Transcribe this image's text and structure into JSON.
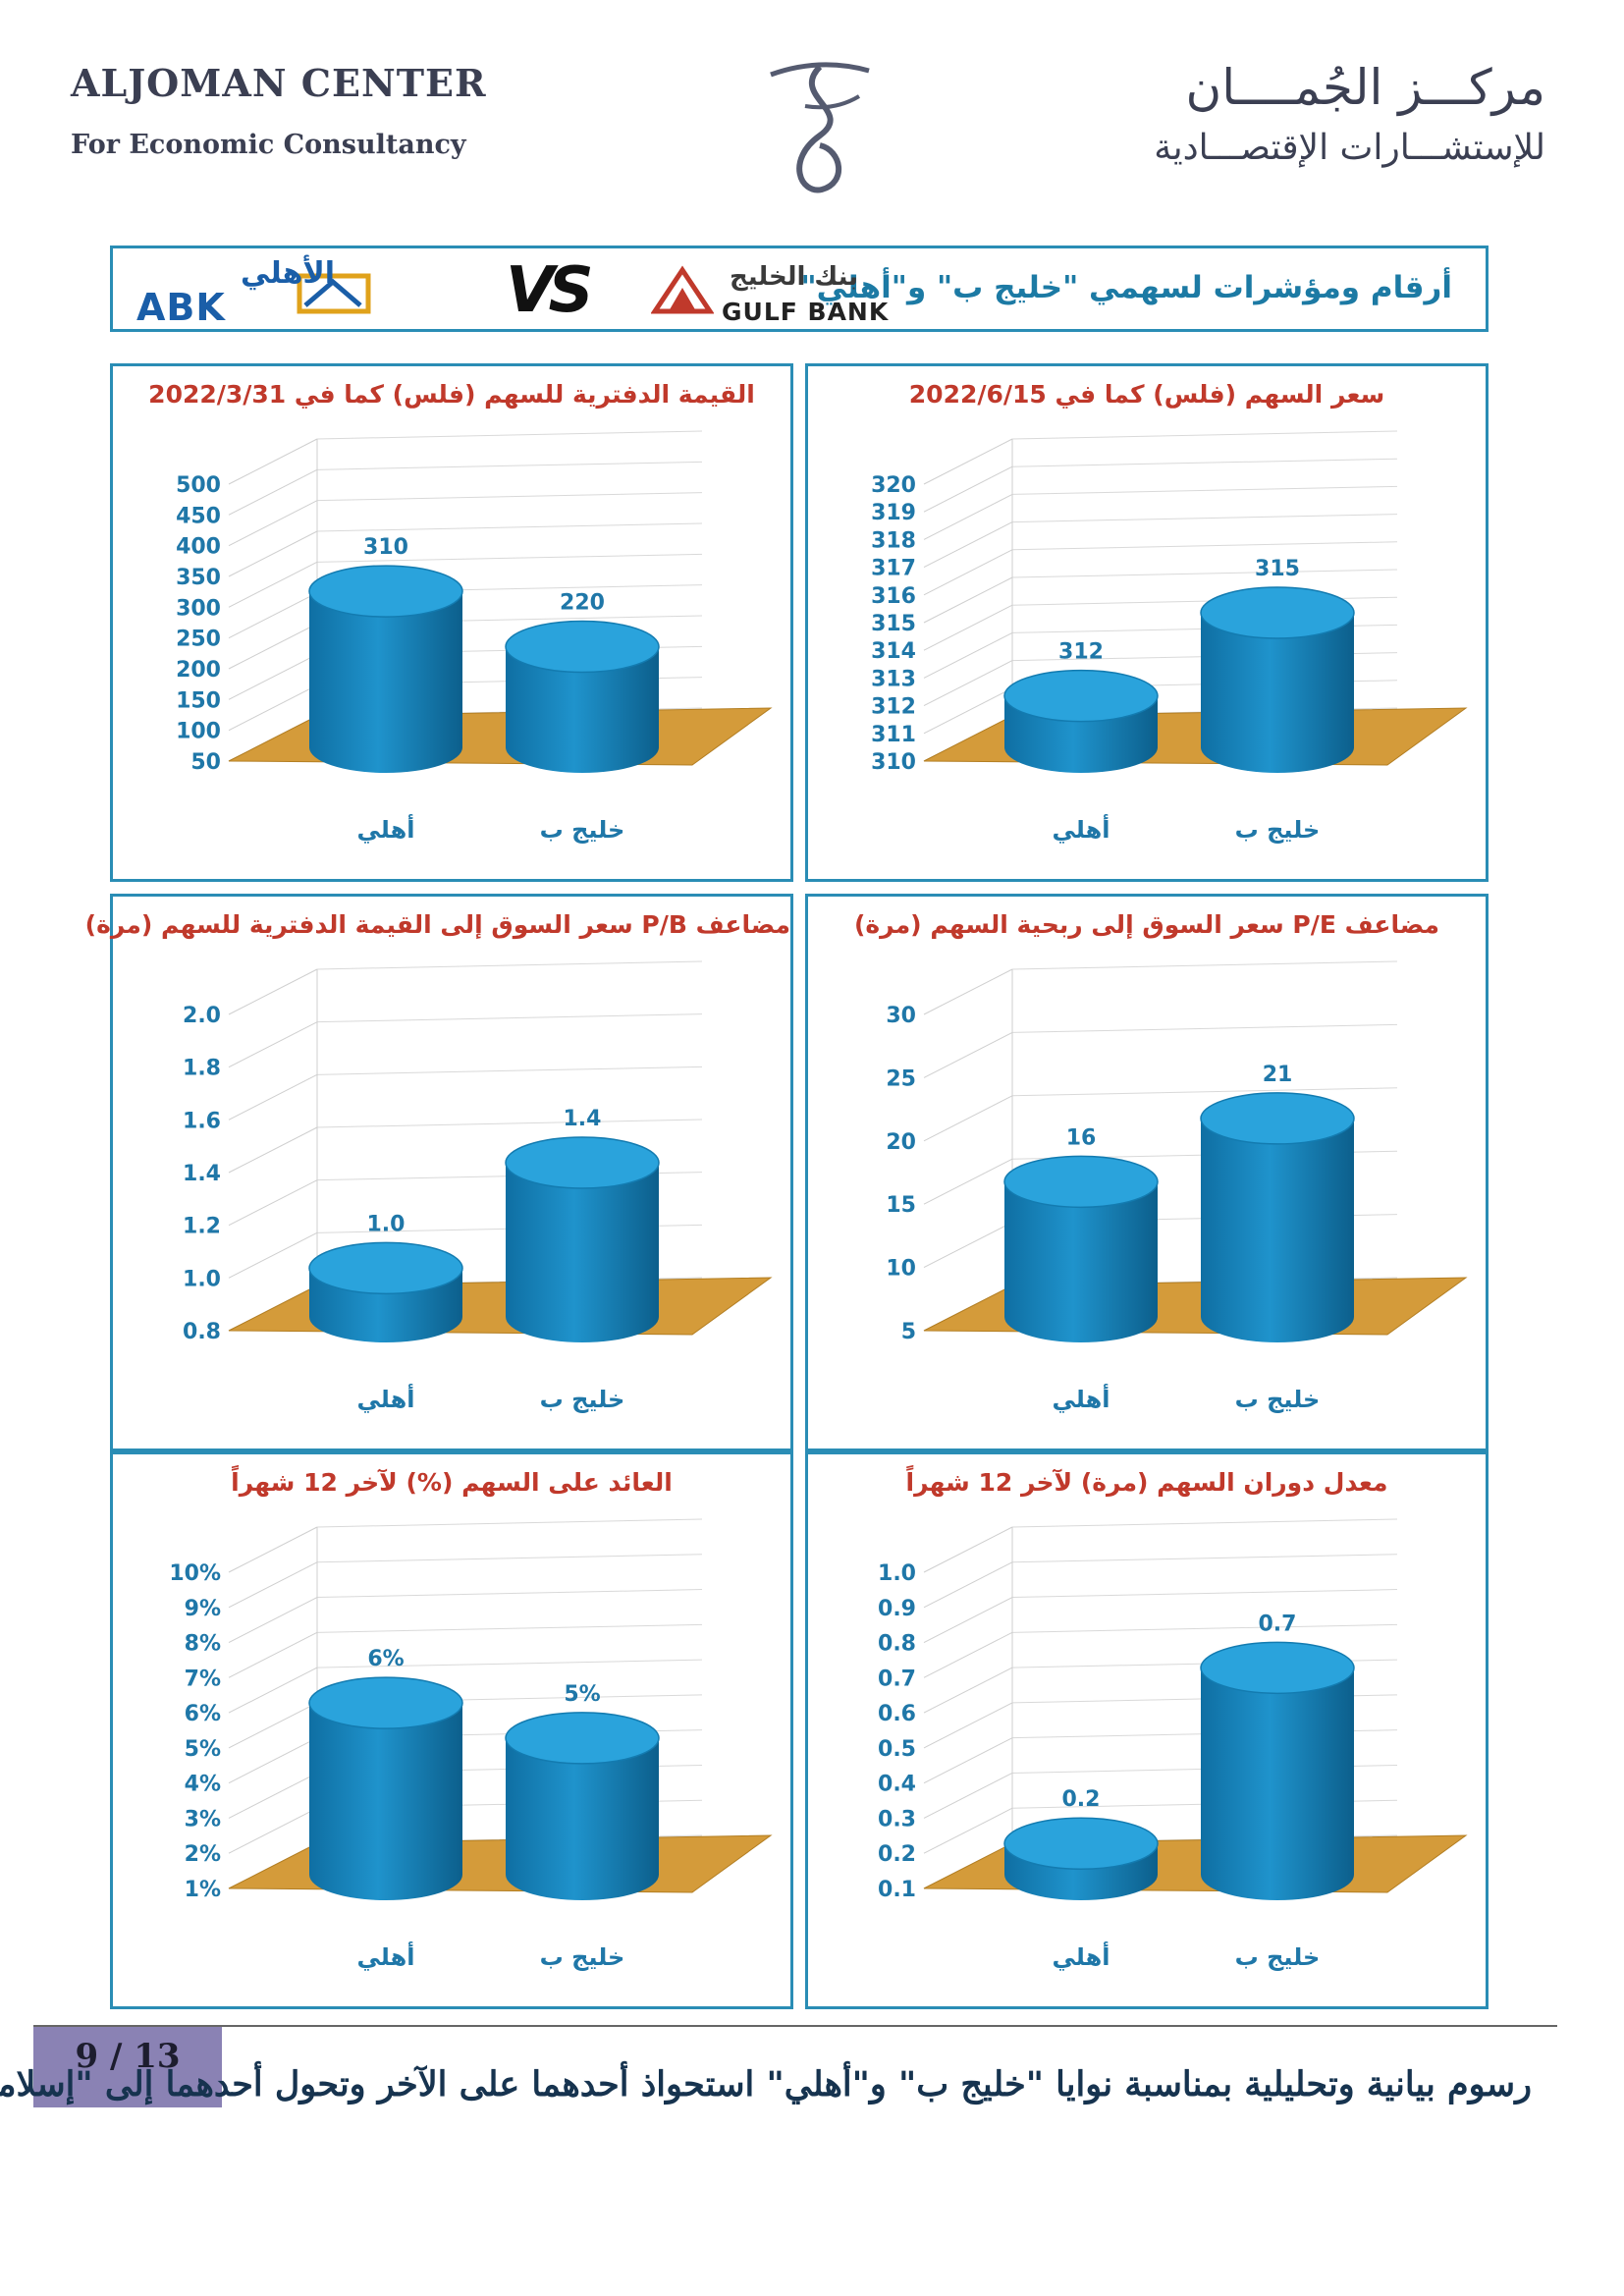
{
  "header": {
    "en_title": "ALJOMAN CENTER",
    "en_subtitle": "For Economic Consultancy",
    "ar_title": "مركـــز الجُمــــان",
    "ar_subtitle": "للإستشـــارات الإقتصـــادية"
  },
  "banner": {
    "title": "أرقام ومؤشرات لسهمي \"خليج ب\" و\"أهلي\"",
    "gulf_bank_ar": "بنك الخليج",
    "gulf_bank_en": "GULF BANK",
    "vs_label": "VS",
    "abk_ar": "الأهلي",
    "abk_en": "ABK"
  },
  "chart_data": [
    {
      "type": "bar",
      "title": "سعر السهم (فلس) كما في 2022/6/15",
      "categories": [
        "أهلي",
        "خليج ب"
      ],
      "values": [
        312,
        315
      ],
      "value_labels": [
        "312",
        "315"
      ],
      "ylim": [
        310,
        320
      ],
      "yticks": [
        "310",
        "311",
        "312",
        "313",
        "314",
        "315",
        "316",
        "317",
        "318",
        "319",
        "320"
      ]
    },
    {
      "type": "bar",
      "title": "القيمة الدفترية للسهم (فلس) كما في 2022/3/31",
      "categories": [
        "أهلي",
        "خليج ب"
      ],
      "values": [
        310,
        220
      ],
      "value_labels": [
        "310",
        "220"
      ],
      "ylim": [
        50,
        500
      ],
      "yticks": [
        "50",
        "100",
        "150",
        "200",
        "250",
        "300",
        "350",
        "400",
        "450",
        "500"
      ]
    },
    {
      "type": "bar",
      "title": "مضاعف P/E سعر السوق إلى ربحية السهم (مرة)",
      "categories": [
        "أهلي",
        "خليج ب"
      ],
      "values": [
        16,
        21
      ],
      "value_labels": [
        "16",
        "21"
      ],
      "ylim": [
        5,
        30
      ],
      "yticks": [
        "5",
        "10",
        "15",
        "20",
        "25",
        "30"
      ]
    },
    {
      "type": "bar",
      "title": "مضاعف P/B سعر السوق إلى القيمة الدفترية للسهم (مرة)",
      "categories": [
        "أهلي",
        "خليج ب"
      ],
      "values": [
        1.0,
        1.4
      ],
      "value_labels": [
        "1.0",
        "1.4"
      ],
      "ylim": [
        0.8,
        2.0
      ],
      "yticks": [
        "0.8",
        "1.0",
        "1.2",
        "1.4",
        "1.6",
        "1.8",
        "2.0"
      ]
    },
    {
      "type": "bar",
      "title": "معدل دوران السهم (مرة) لآخر 12 شهراً",
      "categories": [
        "أهلي",
        "خليج ب"
      ],
      "values": [
        0.2,
        0.7
      ],
      "value_labels": [
        "0.2",
        "0.7"
      ],
      "ylim": [
        0.1,
        1.0
      ],
      "yticks": [
        "0.1",
        "0.2",
        "0.3",
        "0.4",
        "0.5",
        "0.6",
        "0.7",
        "0.8",
        "0.9",
        "1.0"
      ]
    },
    {
      "type": "bar",
      "title": "العائد على السهم (%) لآخر 12 شهراً",
      "categories": [
        "أهلي",
        "خليج ب"
      ],
      "values": [
        6,
        5
      ],
      "value_labels": [
        "6%",
        "5%"
      ],
      "ylim": [
        1,
        10
      ],
      "yticks": [
        "1%",
        "2%",
        "3%",
        "4%",
        "5%",
        "6%",
        "7%",
        "8%",
        "9%",
        "10%"
      ]
    }
  ],
  "footer": {
    "page_number": "9 / 13",
    "caption": "رسوم بيانية وتحليلية بمناسبة نوايا \"خليج ب\" و\"أهلي\" استحواذ أحدهما على الآخر وتحول أحدهما إلى \"إسلامي\""
  },
  "colors": {
    "cylinder": "#1f93cc",
    "floor": "#d49b3a",
    "tick_text": "#1f77a8",
    "title_text": "#c0392b",
    "border": "#2a8db5"
  }
}
